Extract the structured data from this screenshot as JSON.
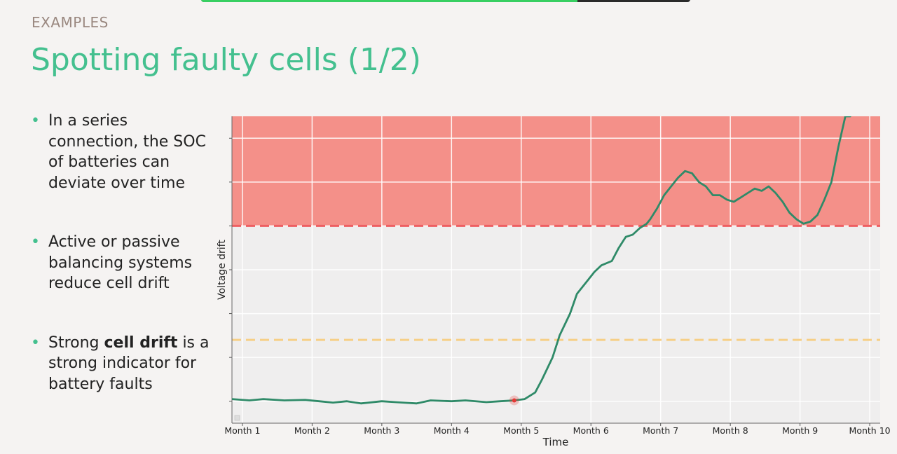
{
  "slide": {
    "progress": 0.77,
    "eyebrow": "EXAMPLES",
    "title": "Spotting faulty cells (1/2)",
    "bullets": [
      {
        "pre": "In a series connection, the SOC of batteries can deviate over time",
        "strong": "",
        "post": ""
      },
      {
        "pre": "Active or passive balancing systems reduce cell drift",
        "strong": "",
        "post": ""
      },
      {
        "pre": "Strong ",
        "strong": "cell drift",
        "post": " is a strong indicator for battery faults"
      }
    ]
  },
  "colors": {
    "accent": "#44c08f",
    "line": "#2f8a68",
    "fault_zone": "#f49089",
    "fault_threshold": "#ee5f62",
    "warning_threshold": "#f6cf86",
    "marker": "#e53935",
    "plot_bg": "#efeeee",
    "grid": "#ffffff"
  },
  "chart_data": {
    "type": "line",
    "xlabel": "Time",
    "ylabel": "Voltage drift",
    "categories": [
      "Month 1",
      "Month 2",
      "Month 3",
      "Month 4",
      "Month 5",
      "Month 6",
      "Month 7",
      "Month 8",
      "Month 9",
      "Month 10"
    ],
    "xlim": [
      0.85,
      10.15
    ],
    "ylim": [
      -0.5,
      6.5
    ],
    "grid": true,
    "thresholds": [
      {
        "kind": "warning",
        "value": 1.4,
        "style": "dashed"
      },
      {
        "kind": "fault",
        "value": 4.0,
        "style": "dashed",
        "shaded_above": true
      }
    ],
    "series": [
      {
        "x": [
          0.85,
          1.1,
          1.3,
          1.6,
          1.9,
          2.1,
          2.3,
          2.5,
          2.7,
          3.0,
          3.2,
          3.5,
          3.7,
          4.0,
          4.2,
          4.5,
          4.7,
          4.9,
          5.05,
          5.2,
          5.3,
          5.45,
          5.55,
          5.7,
          5.8,
          5.95,
          6.05,
          6.15,
          6.3,
          6.4,
          6.5,
          6.6,
          6.7,
          6.8,
          6.85,
          6.95,
          7.05,
          7.15,
          7.25,
          7.35,
          7.45,
          7.55,
          7.65,
          7.75,
          7.85,
          7.95,
          8.05,
          8.15,
          8.25,
          8.35,
          8.45,
          8.55,
          8.65,
          8.75,
          8.85,
          8.95,
          9.05,
          9.15,
          9.25,
          9.35,
          9.45,
          9.55,
          9.65,
          9.72
        ],
        "y": [
          0.05,
          0.02,
          0.05,
          0.02,
          0.03,
          0.0,
          -0.03,
          0.0,
          -0.05,
          0.0,
          -0.02,
          -0.05,
          0.02,
          0.0,
          0.02,
          -0.02,
          0.0,
          0.02,
          0.05,
          0.2,
          0.5,
          1.0,
          1.5,
          2.0,
          2.45,
          2.75,
          2.95,
          3.1,
          3.2,
          3.5,
          3.75,
          3.8,
          3.95,
          4.05,
          4.15,
          4.4,
          4.7,
          4.9,
          5.1,
          5.25,
          5.2,
          5.0,
          4.9,
          4.7,
          4.7,
          4.6,
          4.55,
          4.65,
          4.75,
          4.85,
          4.8,
          4.9,
          4.75,
          4.55,
          4.3,
          4.15,
          4.05,
          4.1,
          4.25,
          4.6,
          5.0,
          5.8,
          6.5,
          6.5
        ]
      }
    ],
    "highlight": {
      "label": "",
      "x": 4.9,
      "y": 0.02
    }
  }
}
